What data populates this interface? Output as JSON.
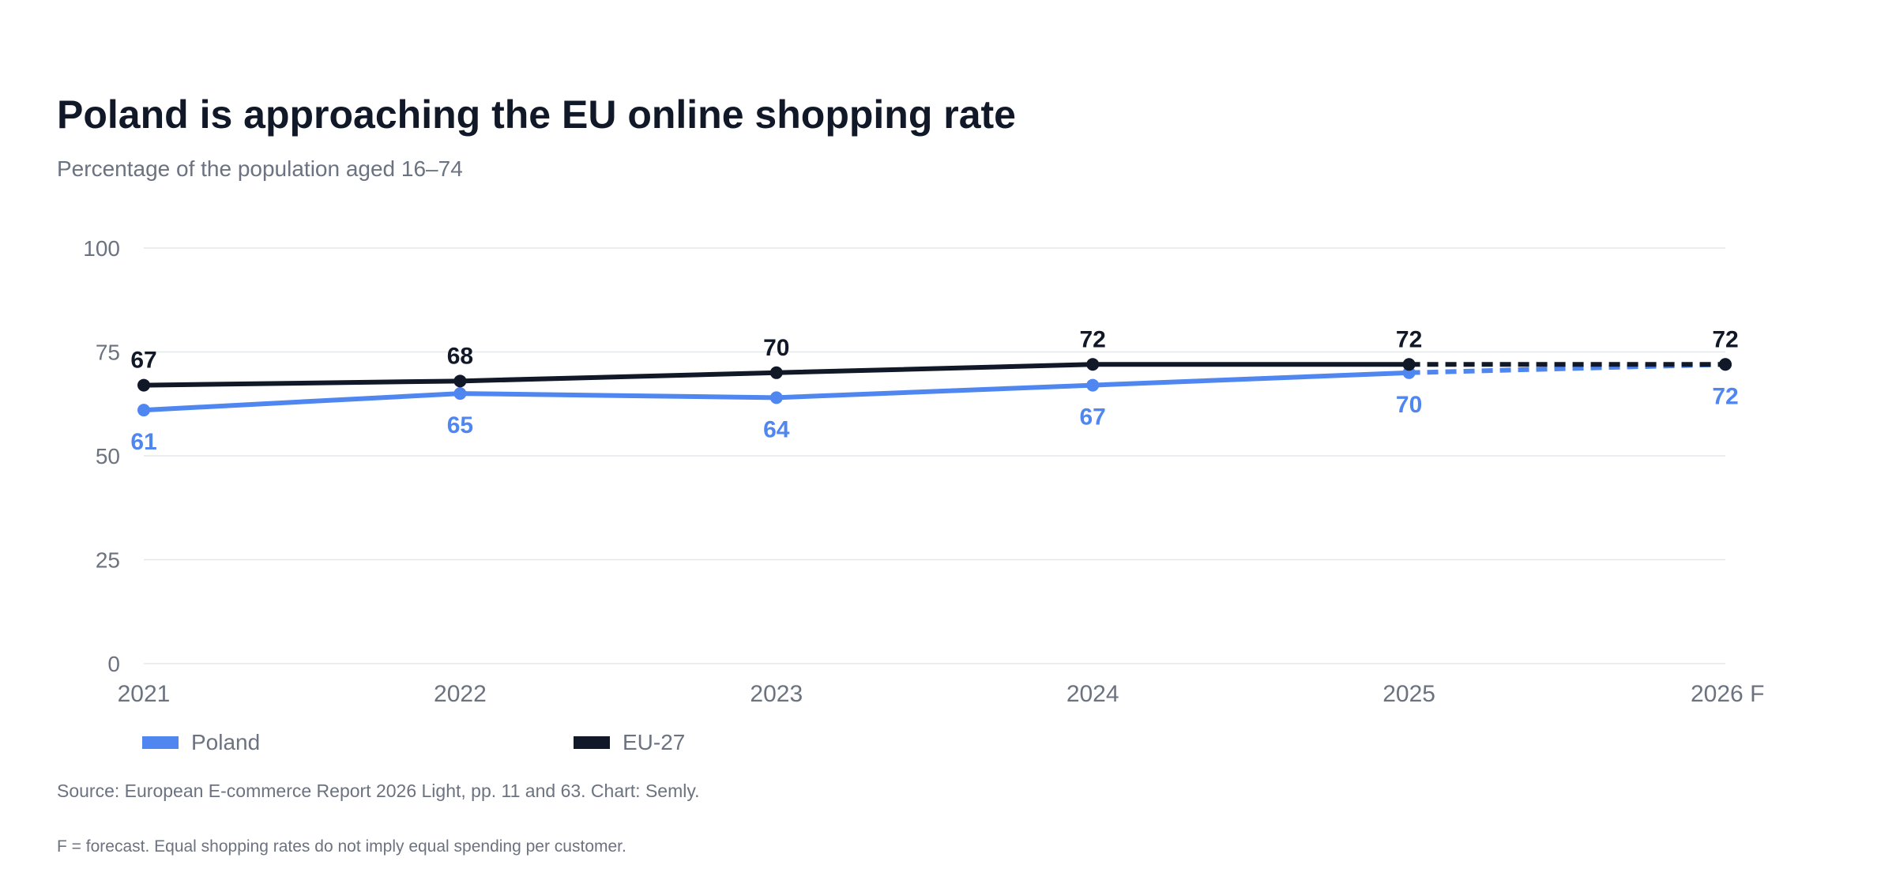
{
  "header": {
    "title": "Poland is approaching the EU online shopping rate",
    "subtitle": "Percentage of the population aged 16–74"
  },
  "colors": {
    "poland": "#4f86f0",
    "eu27": "#111827",
    "grid": "#e5e7eb",
    "axis_text": "#6b7280"
  },
  "chart_data": {
    "type": "line",
    "categories": [
      "2021",
      "2022",
      "2023",
      "2024",
      "2025",
      "2026 F"
    ],
    "ylim": [
      0,
      100
    ],
    "yticks": [
      0,
      25,
      50,
      75,
      100
    ],
    "grid": true,
    "legend_position": "bottom-left",
    "forecast_from_index": 4,
    "series": [
      {
        "name": "Poland",
        "values": [
          61,
          65,
          64,
          67,
          70,
          72
        ],
        "color": "#4f86f0",
        "label_position": "below"
      },
      {
        "name": "EU-27",
        "values": [
          67,
          68,
          70,
          72,
          72,
          72
        ],
        "color": "#111827",
        "label_position": "above"
      }
    ]
  },
  "legend": {
    "items": [
      {
        "label": "Poland",
        "color": "#4f86f0"
      },
      {
        "label": "EU-27",
        "color": "#111827"
      }
    ]
  },
  "footer": {
    "source": "Source: European E-commerce Report 2026 Light, pp. 11 and 63. Chart: Semly.",
    "note": "F = forecast. Equal shopping rates do not imply equal spending per customer."
  }
}
